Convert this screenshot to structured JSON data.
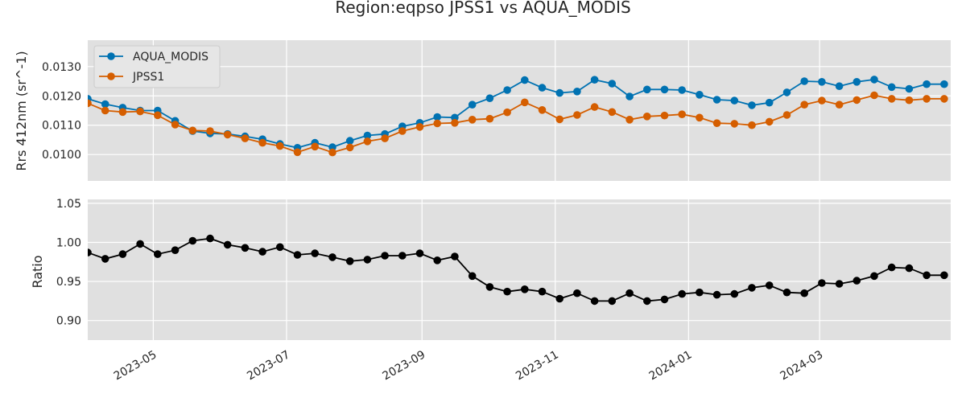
{
  "chart_data": [
    {
      "type": "line",
      "title": "Region:eqpso JPSS1 vs AQUA_MODIS",
      "ylabel": "Rrs 412nm (sr^-1)",
      "xlabel": "",
      "x_type": "date",
      "xlim": [
        "2023-04-01",
        "2024-04-30"
      ],
      "ylim": [
        0.0091,
        0.0139
      ],
      "yticks": [
        "0.0100",
        "0.0110",
        "0.0120",
        "0.0130"
      ],
      "ytick_values": [
        0.01,
        0.011,
        0.012,
        0.013
      ],
      "xticks": [
        "2023-05",
        "2023-07",
        "2023-09",
        "2023-11",
        "2024-01",
        "2024-03"
      ],
      "xtick_dates": [
        "2023-05-01",
        "2023-07-01",
        "2023-09-01",
        "2023-11-01",
        "2024-01-01",
        "2024-03-01"
      ],
      "grid": true,
      "legend": "upper-left",
      "x": [
        "2023-04-01",
        "2023-04-09",
        "2023-04-17",
        "2023-04-25",
        "2023-05-03",
        "2023-05-11",
        "2023-05-19",
        "2023-05-27",
        "2023-06-04",
        "2023-06-12",
        "2023-06-20",
        "2023-06-28",
        "2023-07-06",
        "2023-07-14",
        "2023-07-22",
        "2023-07-30",
        "2023-08-07",
        "2023-08-15",
        "2023-08-23",
        "2023-08-31",
        "2023-09-08",
        "2023-09-16",
        "2023-09-24",
        "2023-10-02",
        "2023-10-10",
        "2023-10-18",
        "2023-10-26",
        "2023-11-03",
        "2023-11-11",
        "2023-11-19",
        "2023-11-27",
        "2023-12-05",
        "2023-12-13",
        "2023-12-21",
        "2023-12-29",
        "2024-01-06",
        "2024-01-14",
        "2024-01-22",
        "2024-01-30",
        "2024-02-07",
        "2024-02-15",
        "2024-02-23",
        "2024-03-02",
        "2024-03-10",
        "2024-03-18",
        "2024-03-26",
        "2024-04-03",
        "2024-04-11",
        "2024-04-19",
        "2024-04-27"
      ],
      "series": [
        {
          "name": "AQUA_MODIS",
          "color": "#0072b2",
          "values": [
            0.0119,
            0.01172,
            0.0116,
            0.0115,
            0.0115,
            0.01115,
            0.0108,
            0.01072,
            0.0107,
            0.01062,
            0.01052,
            0.01036,
            0.01023,
            0.0104,
            0.01025,
            0.01047,
            0.01065,
            0.0107,
            0.01096,
            0.01108,
            0.01128,
            0.01126,
            0.0117,
            0.01192,
            0.0122,
            0.01254,
            0.01228,
            0.0121,
            0.01215,
            0.01255,
            0.01242,
            0.01198,
            0.01222,
            0.01222,
            0.0122,
            0.01204,
            0.01187,
            0.01184,
            0.01168,
            0.01177,
            0.01212,
            0.0125,
            0.01248,
            0.01233,
            0.01248,
            0.01256,
            0.0123,
            0.01224,
            0.0124,
            0.0124
          ]
        },
        {
          "name": "JPSS1",
          "color": "#d55e00",
          "values": [
            0.01175,
            0.0115,
            0.01145,
            0.01147,
            0.01134,
            0.01102,
            0.01082,
            0.0108,
            0.01068,
            0.01055,
            0.0104,
            0.01029,
            0.01008,
            0.01027,
            0.01007,
            0.01024,
            0.01045,
            0.01055,
            0.0108,
            0.01094,
            0.01106,
            0.01108,
            0.01119,
            0.01122,
            0.01144,
            0.01178,
            0.01152,
            0.0112,
            0.01135,
            0.01162,
            0.01145,
            0.01119,
            0.0113,
            0.01133,
            0.01137,
            0.01126,
            0.01107,
            0.01105,
            0.011,
            0.01112,
            0.01135,
            0.0117,
            0.01184,
            0.0117,
            0.01186,
            0.01202,
            0.0119,
            0.01185,
            0.0119,
            0.0119
          ]
        }
      ]
    },
    {
      "type": "line",
      "ylabel": "Ratio",
      "xlabel": "",
      "x_type": "date",
      "ylim": [
        0.875,
        1.055
      ],
      "yticks": [
        "0.90",
        "0.95",
        "1.00",
        "1.05"
      ],
      "ytick_values": [
        0.9,
        0.95,
        1.0,
        1.05
      ],
      "xticks": [
        "2023-05",
        "2023-07",
        "2023-09",
        "2023-11",
        "2024-01",
        "2024-03"
      ],
      "grid": true,
      "series": [
        {
          "color": "#000000",
          "values": [
            0.987,
            0.979,
            0.985,
            0.998,
            0.985,
            0.99,
            1.002,
            1.005,
            0.997,
            0.993,
            0.988,
            0.994,
            0.984,
            0.986,
            0.981,
            0.976,
            0.978,
            0.983,
            0.983,
            0.986,
            0.977,
            0.982,
            0.957,
            0.943,
            0.937,
            0.94,
            0.937,
            0.928,
            0.935,
            0.925,
            0.925,
            0.935,
            0.925,
            0.927,
            0.934,
            0.936,
            0.933,
            0.934,
            0.942,
            0.945,
            0.936,
            0.935,
            0.948,
            0.947,
            0.951,
            0.957,
            0.968,
            0.967,
            0.958,
            0.958
          ]
        }
      ]
    }
  ]
}
